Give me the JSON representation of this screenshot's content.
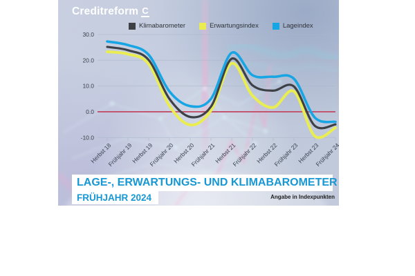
{
  "brand": {
    "name": "Creditreform",
    "mark": "C"
  },
  "legend": {
    "items": [
      {
        "label": "Klimabarometer",
        "color": "#3d4146"
      },
      {
        "label": "Erwartungsindex",
        "color": "#e9ed52"
      },
      {
        "label": "Lageindex",
        "color": "#17a5e3"
      }
    ]
  },
  "chart_data": {
    "type": "line",
    "title": "Lage-, Erwartungs- und Klimabarometer Frühjahr 2024",
    "categories": [
      "Herbst 18",
      "Frühjahr 19",
      "Herbst 19",
      "Frühjahr 20",
      "Herbst 20",
      "Frühjahr 21",
      "Herbst 21",
      "Frühjahr 22",
      "Herbst 22",
      "Frühjahr 23",
      "Herbst 23",
      "Frühjahr 24"
    ],
    "series": [
      {
        "name": "Klimabarometer",
        "color": "#3d4146",
        "values": [
          25.2,
          23.9,
          20.1,
          5.0,
          -2.0,
          2.0,
          20.6,
          10.3,
          8.2,
          9.8,
          -5.4,
          -4.9
        ]
      },
      {
        "name": "Erwartungsindex",
        "color": "#e9ed52",
        "values": [
          23.3,
          22.4,
          18.6,
          2.3,
          -5.1,
          0.5,
          18.8,
          6.3,
          1.7,
          7.9,
          -9.4,
          -6.2
        ]
      },
      {
        "name": "Lageindex",
        "color": "#17a5e3",
        "values": [
          27.3,
          25.9,
          22.1,
          7.9,
          2.2,
          5.0,
          22.9,
          14.2,
          13.6,
          12.8,
          -2.2,
          -3.9
        ]
      }
    ],
    "yticks": [
      "30.0",
      "20.0",
      "10.0",
      "0.0",
      "-10.0"
    ],
    "ytick_values": [
      30,
      20,
      10,
      0,
      -10
    ],
    "ylim": [
      -13,
      32
    ],
    "grid": true,
    "grid_color": "#a9b6cb",
    "zero_line_color": "#c25671",
    "legend_position": "top",
    "unit_note": "Angabe in Indexpunkten"
  },
  "footer": {
    "title": "LAGE-, ERWARTUNGS- UND KLIMABAROMETER",
    "subtitle": "FRÜHJAHR 2024",
    "note": "Angabe in Indexpunkten",
    "accent_color": "#1797d3"
  }
}
